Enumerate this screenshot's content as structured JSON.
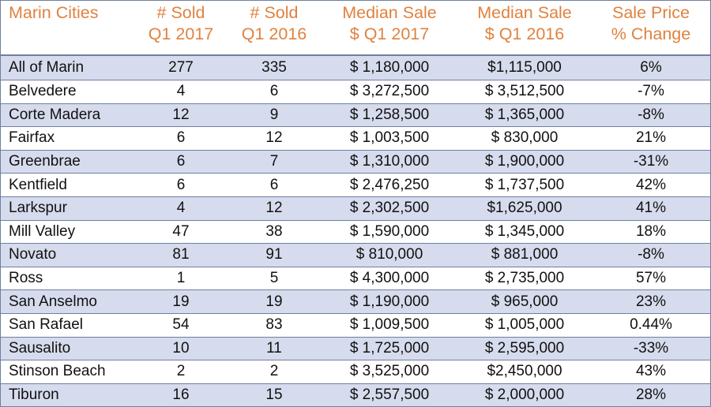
{
  "table": {
    "headers": [
      {
        "line1": "Marin Cities",
        "line2": ""
      },
      {
        "line1": "# Sold",
        "line2": "Q1 2017"
      },
      {
        "line1": "# Sold",
        "line2": "Q1 2016"
      },
      {
        "line1": "Median Sale",
        "line2": "$ Q1 2017"
      },
      {
        "line1": "Median Sale",
        "line2": "$ Q1 2016"
      },
      {
        "line1": "Sale Price",
        "line2": "% Change"
      }
    ],
    "rows": [
      [
        "All of Marin",
        "277",
        "335",
        "$ 1,180,000",
        "$1,115,000",
        "6%"
      ],
      [
        "Belvedere",
        "4",
        "6",
        "$ 3,272,500",
        "$ 3,512,500",
        "-7%"
      ],
      [
        "Corte Madera",
        "12",
        "9",
        "$ 1,258,500",
        "$ 1,365,000",
        "-8%"
      ],
      [
        "Fairfax",
        "6",
        "12",
        "$ 1,003,500",
        "$ 830,000",
        "21%"
      ],
      [
        "Greenbrae",
        "6",
        "7",
        "$ 1,310,000",
        "$ 1,900,000",
        "-31%"
      ],
      [
        "Kentfield",
        "6",
        "6",
        "$ 2,476,250",
        "$ 1,737,500",
        "42%"
      ],
      [
        "Larkspur",
        "4",
        "12",
        "$ 2,302,500",
        "$1,625,000",
        "41%"
      ],
      [
        "Mill Valley",
        "47",
        "38",
        "$ 1,590,000",
        "$ 1,345,000",
        "18%"
      ],
      [
        "Novato",
        "81",
        "91",
        "$ 810,000",
        "$ 881,000",
        "-8%"
      ],
      [
        "Ross",
        "1",
        "5",
        "$ 4,300,000",
        "$ 2,735,000",
        "57%"
      ],
      [
        "San Anselmo",
        "19",
        "19",
        "$ 1,190,000",
        "$ 965,000",
        "23%"
      ],
      [
        "San Rafael",
        "54",
        "83",
        "$ 1,009,500",
        "$ 1,005,000",
        "0.44%"
      ],
      [
        "Sausalito",
        "10",
        "11",
        "$ 1,725,000",
        "$ 2,595,000",
        "-33%"
      ],
      [
        "Stinson Beach",
        "2",
        "2",
        "$ 3,525,000",
        "$2,450,000",
        "43%"
      ],
      [
        "Tiburon",
        "16",
        "15",
        "$ 2,557,500",
        "$ 2,000,000",
        "28%"
      ]
    ],
    "colors": {
      "header_text": "#e0823f",
      "band": "#d6dced",
      "rule": "#6f7f9f"
    }
  }
}
